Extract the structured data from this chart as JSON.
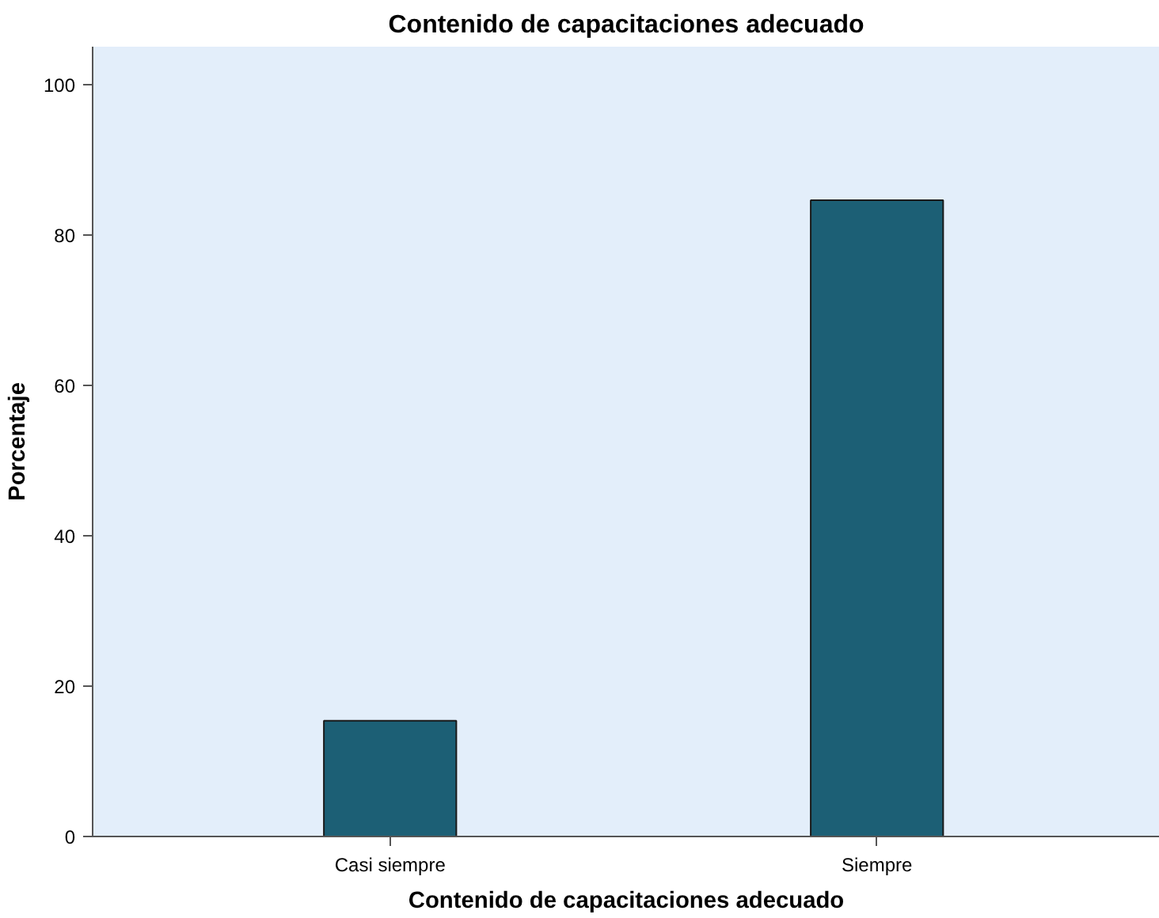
{
  "chart_data": {
    "type": "bar",
    "title": "Contenido de capacitaciones adecuado",
    "xlabel": "Contenido de capacitaciones adecuado",
    "ylabel": "Porcentaje",
    "categories": [
      "Casi siempre",
      "Siempre"
    ],
    "values": [
      15.4,
      84.6
    ],
    "color": "#1c5f75",
    "ylim": [
      0,
      105
    ],
    "yticks": [
      0,
      20,
      40,
      60,
      80,
      100
    ],
    "grid": false
  }
}
